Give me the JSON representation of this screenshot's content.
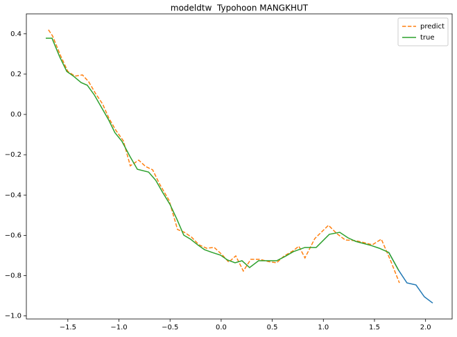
{
  "chart_data": {
    "type": "line",
    "title": "modeldtw  Typohoon MANGKHUT",
    "xlim": [
      -1.906,
      2.26
    ],
    "ylim": [
      -1.015,
      0.499
    ],
    "xticks": [
      {
        "value": -1.5,
        "label": "−1.5"
      },
      {
        "value": -1.0,
        "label": "−1.0"
      },
      {
        "value": -0.5,
        "label": "−0.5"
      },
      {
        "value": 0.0,
        "label": "0.0"
      },
      {
        "value": 0.5,
        "label": "0.5"
      },
      {
        "value": 1.0,
        "label": "1.0"
      },
      {
        "value": 1.5,
        "label": "1.5"
      },
      {
        "value": 2.0,
        "label": "2.0"
      }
    ],
    "yticks": [
      0.4,
      0.2,
      {
        "value": 0.0,
        "label": "0.0"
      },
      {
        "value": -0.2,
        "label": "−0.2"
      },
      {
        "value": -0.4,
        "label": "−0.4"
      },
      {
        "value": -0.6,
        "label": "−0.6"
      },
      {
        "value": -0.8,
        "label": "−0.8"
      },
      {
        "value": -1.0,
        "label": "−1.0"
      }
    ],
    "legend": "upper right",
    "series": [
      {
        "color": "#1f77b4",
        "dash": false,
        "x": [
          1.64,
          1.737,
          1.818,
          1.906,
          1.988,
          2.07
        ],
        "values": [
          -0.685,
          -0.774,
          -0.836,
          -0.846,
          -0.905,
          -0.936
        ]
      },
      {
        "name": "predict",
        "color": "#ff7f0e",
        "dash": true,
        "x": [
          -1.69,
          -1.65,
          -1.57,
          -1.5,
          -1.43,
          -1.357,
          -1.296,
          -1.228,
          -1.16,
          -1.1,
          -1.03,
          -0.957,
          -0.889,
          -0.807,
          -0.74,
          -0.67,
          -0.604,
          -0.509,
          -0.427,
          -0.36,
          -0.29,
          -0.217,
          -0.142,
          -0.068,
          0.007,
          0.075,
          0.143,
          0.217,
          0.29,
          0.38,
          0.46,
          0.543,
          0.617,
          0.7,
          0.76,
          0.82,
          0.916,
          1.05,
          1.133,
          1.214,
          1.31,
          1.397,
          1.479,
          1.567,
          1.655,
          1.744
        ],
        "values": [
          0.42,
          0.39,
          0.29,
          0.213,
          0.19,
          0.196,
          0.162,
          0.103,
          0.052,
          -0.017,
          -0.079,
          -0.131,
          -0.255,
          -0.227,
          -0.258,
          -0.275,
          -0.344,
          -0.427,
          -0.571,
          -0.585,
          -0.609,
          -0.647,
          -0.664,
          -0.66,
          -0.695,
          -0.733,
          -0.702,
          -0.777,
          -0.719,
          -0.719,
          -0.73,
          -0.736,
          -0.702,
          -0.678,
          -0.654,
          -0.712,
          -0.616,
          -0.55,
          -0.592,
          -0.623,
          -0.626,
          -0.636,
          -0.647,
          -0.619,
          -0.722,
          -0.836
        ]
      },
      {
        "name": "true",
        "color": "#2ca02c",
        "dash": false,
        "x": [
          -1.716,
          -1.655,
          -1.58,
          -1.51,
          -1.445,
          -1.37,
          -1.31,
          -1.24,
          -1.17,
          -1.1,
          -1.04,
          -0.97,
          -0.895,
          -0.82,
          -0.71,
          -0.64,
          -0.57,
          -0.5,
          -0.434,
          -0.366,
          -0.3,
          -0.23,
          -0.163,
          -0.088,
          -0.007,
          0.061,
          0.136,
          0.204,
          0.278,
          0.366,
          0.448,
          0.543,
          0.624,
          0.706,
          0.82,
          0.93,
          1.058,
          1.16,
          1.24,
          1.316,
          1.39,
          1.465,
          1.547,
          1.64,
          1.737
        ],
        "values": [
          0.378,
          0.378,
          0.286,
          0.213,
          0.19,
          0.158,
          0.145,
          0.096,
          0.034,
          -0.028,
          -0.09,
          -0.134,
          -0.206,
          -0.272,
          -0.286,
          -0.327,
          -0.389,
          -0.447,
          -0.519,
          -0.599,
          -0.619,
          -0.647,
          -0.671,
          -0.685,
          -0.698,
          -0.722,
          -0.736,
          -0.726,
          -0.76,
          -0.726,
          -0.726,
          -0.726,
          -0.705,
          -0.681,
          -0.66,
          -0.66,
          -0.595,
          -0.585,
          -0.612,
          -0.63,
          -0.64,
          -0.65,
          -0.664,
          -0.685,
          -0.774
        ]
      }
    ]
  }
}
